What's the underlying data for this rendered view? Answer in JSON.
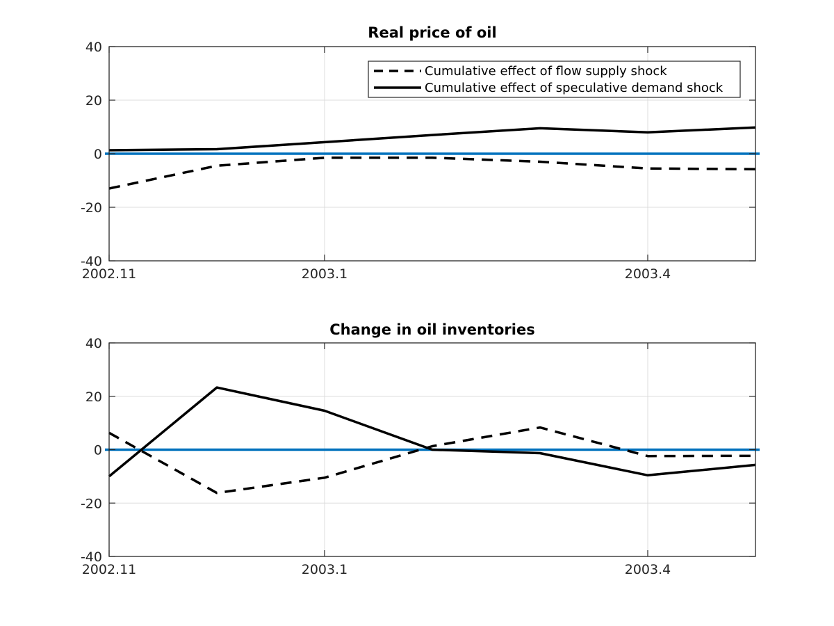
{
  "chart_data": [
    {
      "type": "line",
      "title": "Real price of oil",
      "xlabel": "",
      "ylabel": "",
      "x": [
        0,
        1,
        2,
        3,
        4,
        5,
        6
      ],
      "xlim": [
        0,
        6
      ],
      "xticks": [
        {
          "value": 0,
          "label": "2002.11"
        },
        {
          "value": 2,
          "label": "2003.1"
        },
        {
          "value": 5,
          "label": "2003.4"
        }
      ],
      "ylim": [
        -40,
        40
      ],
      "yticks": [
        -40,
        -20,
        0,
        20,
        40
      ],
      "grid": true,
      "legend_position": "top-right",
      "zero_line": {
        "value": 0,
        "color": "#0072bd"
      },
      "series": [
        {
          "name": "Cumulative effect of flow supply shock",
          "style": "dashed",
          "color": "#000000",
          "values": [
            -13,
            -4.5,
            -1.5,
            -1.5,
            -3,
            -5.5,
            -5.8
          ]
        },
        {
          "name": "Cumulative effect of speculative demand shock",
          "style": "solid",
          "color": "#000000",
          "values": [
            1.3,
            1.7,
            4.3,
            7,
            9.5,
            8,
            9.8
          ]
        }
      ]
    },
    {
      "type": "line",
      "title": "Change in oil inventories",
      "xlabel": "",
      "ylabel": "",
      "x": [
        0,
        1,
        2,
        3,
        4,
        5,
        6
      ],
      "xlim": [
        0,
        6
      ],
      "xticks": [
        {
          "value": 0,
          "label": "2002.11"
        },
        {
          "value": 2,
          "label": "2003.1"
        },
        {
          "value": 5,
          "label": "2003.4"
        }
      ],
      "ylim": [
        -40,
        40
      ],
      "yticks": [
        -40,
        -20,
        0,
        20,
        40
      ],
      "grid": true,
      "legend_position": "none",
      "zero_line": {
        "value": 0,
        "color": "#0072bd"
      },
      "series": [
        {
          "name": "Cumulative effect of flow supply shock",
          "style": "dashed",
          "color": "#000000",
          "values": [
            6.3,
            -16.2,
            -10.5,
            1.3,
            8.3,
            -2.4,
            -2.3
          ]
        },
        {
          "name": "Cumulative effect of speculative demand shock",
          "style": "solid",
          "color": "#000000",
          "values": [
            -10,
            23.3,
            14.6,
            0,
            -1.3,
            -9.6,
            -5.7
          ]
        }
      ]
    }
  ]
}
